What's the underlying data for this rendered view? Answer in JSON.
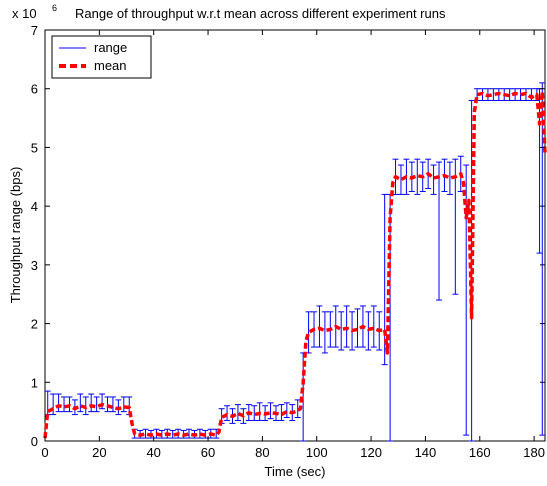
{
  "chart_data": {
    "type": "line",
    "title": "Range of throughput w.r.t mean across different experiment runs",
    "y_multiplier_base": "x 10",
    "y_multiplier_exp": "6",
    "xlabel": "Time (sec)",
    "ylabel": "Throughput range (bps)",
    "xlim": [
      0,
      184
    ],
    "ylim": [
      0,
      7
    ],
    "xticks": [
      0,
      20,
      40,
      60,
      80,
      100,
      120,
      140,
      160,
      180
    ],
    "yticks": [
      0,
      1,
      2,
      3,
      4,
      5,
      6,
      7
    ],
    "grid": false,
    "legend_position": "top-left",
    "legend": [
      {
        "label": "range",
        "style": "solid-thin",
        "color": "#0000ff"
      },
      {
        "label": "mean",
        "style": "dashed-thick",
        "color": "#ff0000"
      }
    ],
    "series": [
      {
        "name": "mean",
        "color": "#ff0000",
        "points": [
          [
            0,
            0.05
          ],
          [
            1,
            0.5
          ],
          [
            3,
            0.55
          ],
          [
            5,
            0.6
          ],
          [
            7,
            0.58
          ],
          [
            9,
            0.6
          ],
          [
            11,
            0.55
          ],
          [
            13,
            0.6
          ],
          [
            15,
            0.57
          ],
          [
            17,
            0.6
          ],
          [
            19,
            0.58
          ],
          [
            21,
            0.62
          ],
          [
            23,
            0.6
          ],
          [
            25,
            0.57
          ],
          [
            27,
            0.55
          ],
          [
            29,
            0.58
          ],
          [
            31,
            0.57
          ],
          [
            32,
            0.3
          ],
          [
            33,
            0.12
          ],
          [
            35,
            0.1
          ],
          [
            37,
            0.12
          ],
          [
            39,
            0.1
          ],
          [
            41,
            0.12
          ],
          [
            43,
            0.1
          ],
          [
            45,
            0.12
          ],
          [
            47,
            0.1
          ],
          [
            49,
            0.12
          ],
          [
            51,
            0.1
          ],
          [
            53,
            0.12
          ],
          [
            55,
            0.1
          ],
          [
            57,
            0.12
          ],
          [
            59,
            0.1
          ],
          [
            61,
            0.12
          ],
          [
            63,
            0.1
          ],
          [
            64,
            0.15
          ],
          [
            65,
            0.4
          ],
          [
            67,
            0.45
          ],
          [
            69,
            0.42
          ],
          [
            71,
            0.47
          ],
          [
            73,
            0.43
          ],
          [
            75,
            0.48
          ],
          [
            77,
            0.45
          ],
          [
            79,
            0.47
          ],
          [
            81,
            0.46
          ],
          [
            83,
            0.48
          ],
          [
            85,
            0.47
          ],
          [
            87,
            0.45
          ],
          [
            89,
            0.5
          ],
          [
            91,
            0.48
          ],
          [
            93,
            0.52
          ],
          [
            94,
            0.55
          ],
          [
            95,
            1.0
          ],
          [
            96,
            1.7
          ],
          [
            97,
            1.85
          ],
          [
            99,
            1.9
          ],
          [
            101,
            1.92
          ],
          [
            103,
            1.88
          ],
          [
            105,
            1.9
          ],
          [
            107,
            1.95
          ],
          [
            109,
            1.9
          ],
          [
            111,
            1.92
          ],
          [
            113,
            1.88
          ],
          [
            115,
            1.9
          ],
          [
            117,
            1.95
          ],
          [
            119,
            1.9
          ],
          [
            121,
            1.92
          ],
          [
            123,
            1.88
          ],
          [
            125,
            1.9
          ],
          [
            126,
            1.5
          ],
          [
            127,
            3.8
          ],
          [
            128,
            4.4
          ],
          [
            129,
            4.5
          ],
          [
            131,
            4.45
          ],
          [
            133,
            4.5
          ],
          [
            135,
            4.48
          ],
          [
            137,
            4.52
          ],
          [
            139,
            4.5
          ],
          [
            141,
            4.55
          ],
          [
            143,
            4.48
          ],
          [
            145,
            4.5
          ],
          [
            147,
            4.52
          ],
          [
            149,
            4.48
          ],
          [
            151,
            4.5
          ],
          [
            153,
            4.55
          ],
          [
            154,
            4.4
          ],
          [
            155,
            3.8
          ],
          [
            156,
            4.1
          ],
          [
            157,
            2.1
          ],
          [
            158,
            5.6
          ],
          [
            159,
            5.9
          ],
          [
            161,
            5.92
          ],
          [
            163,
            5.88
          ],
          [
            165,
            5.9
          ],
          [
            167,
            5.92
          ],
          [
            169,
            5.9
          ],
          [
            171,
            5.88
          ],
          [
            173,
            5.92
          ],
          [
            175,
            5.9
          ],
          [
            177,
            5.92
          ],
          [
            179,
            5.85
          ],
          [
            181,
            5.9
          ],
          [
            182,
            5.4
          ],
          [
            183,
            5.95
          ],
          [
            184,
            4.9
          ]
        ]
      },
      {
        "name": "range",
        "color": "#0000ff",
        "intervals": [
          [
            1,
            0.45,
            0.85
          ],
          [
            3,
            0.45,
            0.8
          ],
          [
            5,
            0.5,
            0.8
          ],
          [
            7,
            0.5,
            0.75
          ],
          [
            9,
            0.5,
            0.75
          ],
          [
            11,
            0.45,
            0.7
          ],
          [
            13,
            0.5,
            0.8
          ],
          [
            15,
            0.45,
            0.75
          ],
          [
            17,
            0.5,
            0.8
          ],
          [
            19,
            0.5,
            0.75
          ],
          [
            21,
            0.55,
            0.8
          ],
          [
            23,
            0.5,
            0.75
          ],
          [
            25,
            0.5,
            0.75
          ],
          [
            27,
            0.45,
            0.7
          ],
          [
            29,
            0.5,
            0.75
          ],
          [
            31,
            0.45,
            0.75
          ],
          [
            33,
            0.05,
            0.2
          ],
          [
            35,
            0.05,
            0.18
          ],
          [
            37,
            0.05,
            0.2
          ],
          [
            39,
            0.05,
            0.18
          ],
          [
            41,
            0.05,
            0.2
          ],
          [
            43,
            0.05,
            0.18
          ],
          [
            45,
            0.05,
            0.2
          ],
          [
            47,
            0.05,
            0.18
          ],
          [
            49,
            0.05,
            0.2
          ],
          [
            51,
            0.05,
            0.18
          ],
          [
            53,
            0.05,
            0.2
          ],
          [
            55,
            0.05,
            0.18
          ],
          [
            57,
            0.05,
            0.2
          ],
          [
            59,
            0.05,
            0.18
          ],
          [
            61,
            0.05,
            0.2
          ],
          [
            63,
            0.05,
            0.2
          ],
          [
            65,
            0.3,
            0.55
          ],
          [
            67,
            0.35,
            0.6
          ],
          [
            69,
            0.3,
            0.55
          ],
          [
            71,
            0.35,
            0.62
          ],
          [
            73,
            0.3,
            0.55
          ],
          [
            75,
            0.35,
            0.62
          ],
          [
            77,
            0.35,
            0.6
          ],
          [
            79,
            0.35,
            0.65
          ],
          [
            81,
            0.35,
            0.6
          ],
          [
            83,
            0.38,
            0.65
          ],
          [
            85,
            0.35,
            0.6
          ],
          [
            87,
            0.35,
            0.62
          ],
          [
            89,
            0.4,
            0.65
          ],
          [
            91,
            0.35,
            0.62
          ],
          [
            93,
            0.4,
            0.7
          ],
          [
            95,
            0.0,
            1.5
          ],
          [
            97,
            1.5,
            2.2
          ],
          [
            99,
            1.6,
            2.2
          ],
          [
            101,
            1.6,
            2.3
          ],
          [
            103,
            1.5,
            2.2
          ],
          [
            105,
            1.6,
            2.2
          ],
          [
            107,
            1.6,
            2.3
          ],
          [
            109,
            1.55,
            2.2
          ],
          [
            111,
            1.6,
            2.3
          ],
          [
            113,
            1.55,
            2.2
          ],
          [
            115,
            1.6,
            2.25
          ],
          [
            117,
            1.6,
            2.3
          ],
          [
            119,
            1.55,
            2.2
          ],
          [
            121,
            1.6,
            2.3
          ],
          [
            123,
            1.55,
            2.2
          ],
          [
            125,
            1.3,
            4.2
          ],
          [
            127,
            0.0,
            4.2
          ],
          [
            129,
            4.2,
            4.8
          ],
          [
            131,
            4.2,
            4.7
          ],
          [
            133,
            4.2,
            4.8
          ],
          [
            135,
            4.25,
            4.75
          ],
          [
            137,
            4.2,
            4.8
          ],
          [
            139,
            4.25,
            4.75
          ],
          [
            141,
            4.3,
            4.8
          ],
          [
            143,
            4.2,
            4.7
          ],
          [
            145,
            2.4,
            4.75
          ],
          [
            147,
            4.25,
            4.8
          ],
          [
            149,
            4.2,
            4.75
          ],
          [
            151,
            2.5,
            4.8
          ],
          [
            153,
            4.25,
            4.85
          ],
          [
            155,
            0.1,
            4.7
          ],
          [
            157,
            0.0,
            5.8
          ],
          [
            159,
            5.8,
            6.0
          ],
          [
            161,
            5.8,
            6.0
          ],
          [
            163,
            5.8,
            6.0
          ],
          [
            165,
            5.8,
            6.0
          ],
          [
            167,
            5.8,
            6.0
          ],
          [
            169,
            5.8,
            6.0
          ],
          [
            171,
            5.8,
            6.0
          ],
          [
            173,
            5.8,
            6.0
          ],
          [
            175,
            5.8,
            6.0
          ],
          [
            177,
            5.8,
            6.0
          ],
          [
            179,
            5.8,
            6.0
          ],
          [
            181,
            5.8,
            6.0
          ],
          [
            182,
            3.2,
            6.0
          ],
          [
            183,
            0.1,
            6.1
          ]
        ]
      }
    ]
  }
}
